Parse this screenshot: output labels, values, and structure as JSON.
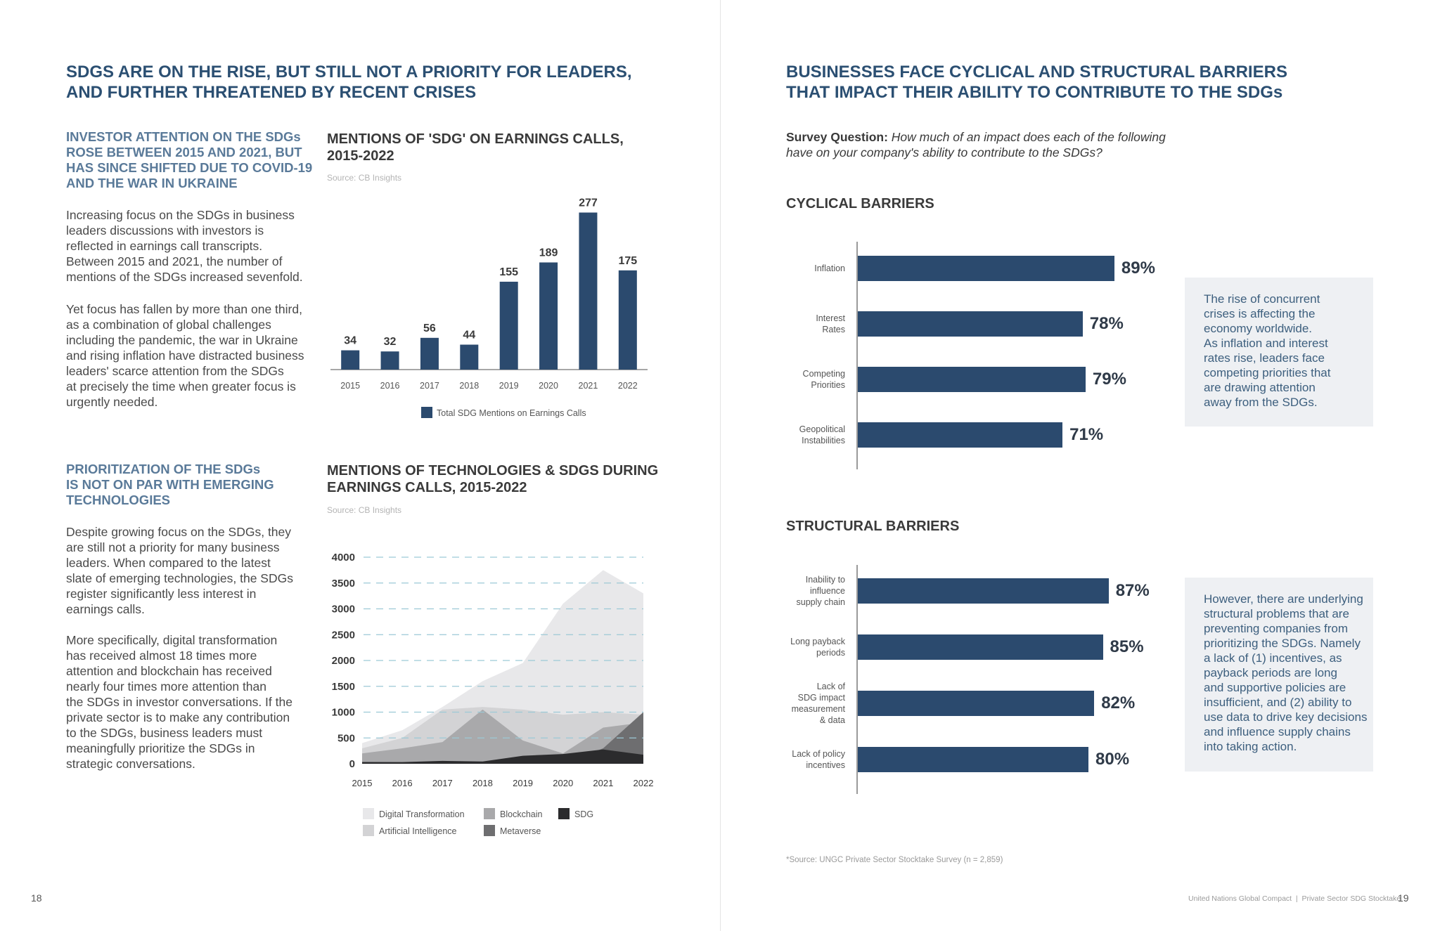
{
  "left": {
    "title": [
      "SDGS ARE ON THE RISE, BUT STILL NOT A PRIORITY FOR LEADERS,",
      "AND FURTHER THREATENED BY RECENT CRISES"
    ],
    "section1": {
      "heading": [
        "INVESTOR ATTENTION ON THE SDGs",
        "ROSE BETWEEN 2015 AND 2021, BUT",
        "HAS SINCE SHIFTED DUE TO COVID-19",
        "AND THE WAR IN UKRAINE"
      ],
      "para1": [
        "Increasing focus on the SDGs in business",
        "leaders discussions with investors is",
        "reflected in earnings call transcripts.",
        "Between 2015 and 2021, the number of",
        "mentions of the SDGs increased sevenfold."
      ],
      "para2": [
        "Yet focus has fallen by more than one third,",
        "as a combination of global challenges",
        "including the pandemic, the war in Ukraine",
        "and rising inflation have distracted business",
        "leaders' scarce attention from the SDGs",
        "at precisely the time when greater focus is",
        "urgently needed."
      ]
    },
    "section2": {
      "heading": [
        "PRIORITIZATION OF THE SDGs",
        "IS NOT ON PAR WITH EMERGING",
        "TECHNOLOGIES"
      ],
      "para1": [
        "Despite growing focus on the SDGs, they",
        "are still not a priority for many business",
        "leaders. When compared to the latest",
        "slate of emerging technologies, the SDGs",
        "register significantly less interest in",
        "earnings calls."
      ],
      "para2": [
        "More specifically, digital transformation",
        "has received almost 18 times more",
        "attention and blockchain has received",
        "nearly four times more attention than",
        "the SDGs in investor conversations. If the",
        "private sector is to make any contribution",
        "to the SDGs, business leaders must",
        "meaningfully prioritize the SDGs in",
        "strategic conversations."
      ]
    },
    "page_number": "18"
  },
  "right": {
    "title": [
      "BUSINESSES FACE CYCLICAL AND STRUCTURAL BARRIERS",
      "THAT IMPACT THEIR ABILITY TO CONTRIBUTE TO THE SDGs"
    ],
    "survey_label": "Survey Question:",
    "survey_question": [
      "How much of an impact does each of the following",
      "have on your company's ability to contribute to the SDGs?"
    ],
    "cyclical_note": [
      "The rise of concurrent",
      "crises is affecting the",
      "economy worldwide.",
      "As inflation and interest",
      "rates rise, leaders face",
      "competing priorities that",
      "are drawing attention",
      "away from the SDGs."
    ],
    "structural_note": [
      "However, there are underlying",
      "structural problems that are",
      "preventing companies from",
      "prioritizing the SDGs. Namely",
      "a lack of (1) incentives, as",
      "payback periods are long",
      "and supportive policies are",
      "insufficient, and (2) ability to",
      "use data to drive key decisions",
      "and influence supply chains",
      "into taking action."
    ],
    "footnote": "*Source: UNGC Private Sector Stocktake Survey (n = 2,859)",
    "footer": "United Nations Global Compact  |  Private Sector SDG Stocktake",
    "page_number": "19"
  },
  "chart_data": [
    {
      "type": "bar",
      "title": [
        "MENTIONS OF 'SDG' ON EARNINGS CALLS,",
        "2015-2022"
      ],
      "source": "Source: CB Insights",
      "categories": [
        "2015",
        "2016",
        "2017",
        "2018",
        "2019",
        "2020",
        "2021",
        "2022"
      ],
      "values": [
        34,
        32,
        56,
        44,
        155,
        189,
        277,
        175
      ],
      "series_name": "Total SDG Mentions on Earnings Calls",
      "color": "#2b4a6e",
      "ylim": [
        0,
        290
      ]
    },
    {
      "type": "area",
      "title": [
        "MENTIONS OF TECHNOLOGIES & SDGS DURING",
        "EARNINGS CALLS, 2015-2022"
      ],
      "source": "Source: CB Insights",
      "x": [
        "2015",
        "2016",
        "2017",
        "2018",
        "2019",
        "2020",
        "2021",
        "2022"
      ],
      "yticks": [
        "0",
        "500",
        "1000",
        "1500",
        "2000",
        "2500",
        "3000",
        "3500",
        "4000"
      ],
      "ylim": [
        0,
        4000
      ],
      "series": [
        {
          "name": "Digital Transformation",
          "color": "#e8e8ea",
          "values": [
            400,
            650,
            1100,
            1600,
            1950,
            3100,
            3750,
            3300
          ]
        },
        {
          "name": "Artificial Intelligence",
          "color": "#d3d3d5",
          "values": [
            300,
            500,
            1050,
            1100,
            1050,
            950,
            1000,
            950
          ]
        },
        {
          "name": "Blockchain",
          "color": "#a9a9ab",
          "values": [
            200,
            300,
            420,
            1050,
            450,
            200,
            700,
            800
          ]
        },
        {
          "name": "Metaverse",
          "color": "#6e6e70",
          "values": [
            0,
            0,
            0,
            0,
            0,
            0,
            300,
            1000
          ]
        },
        {
          "name": "SDG",
          "color": "#2b2b2d",
          "values": [
            34,
            32,
            56,
            44,
            155,
            189,
            277,
            175
          ]
        }
      ]
    },
    {
      "type": "bar",
      "orientation": "horizontal",
      "title": "CYCLICAL BARRIERS",
      "categories": [
        [
          "Inflation"
        ],
        [
          "Interest",
          "Rates"
        ],
        [
          "Competing",
          "Priorities"
        ],
        [
          "Geopolitical",
          "Instabilities"
        ]
      ],
      "values": [
        89,
        78,
        79,
        71
      ],
      "labels": [
        "89%",
        "78%",
        "79%",
        "71%"
      ],
      "color": "#2b4a6e",
      "xlim": [
        0,
        100
      ]
    },
    {
      "type": "bar",
      "orientation": "horizontal",
      "title": "STRUCTURAL BARRIERS",
      "categories": [
        [
          "Inability to",
          "influence",
          "supply chain"
        ],
        [
          "Long payback",
          "periods"
        ],
        [
          "Lack of",
          "SDG impact",
          "measurement",
          "& data"
        ],
        [
          "Lack of policy",
          "incentives"
        ]
      ],
      "values": [
        87,
        85,
        82,
        80
      ],
      "labels": [
        "87%",
        "85%",
        "82%",
        "80%"
      ],
      "color": "#2b4a6e",
      "xlim": [
        0,
        100
      ]
    }
  ]
}
